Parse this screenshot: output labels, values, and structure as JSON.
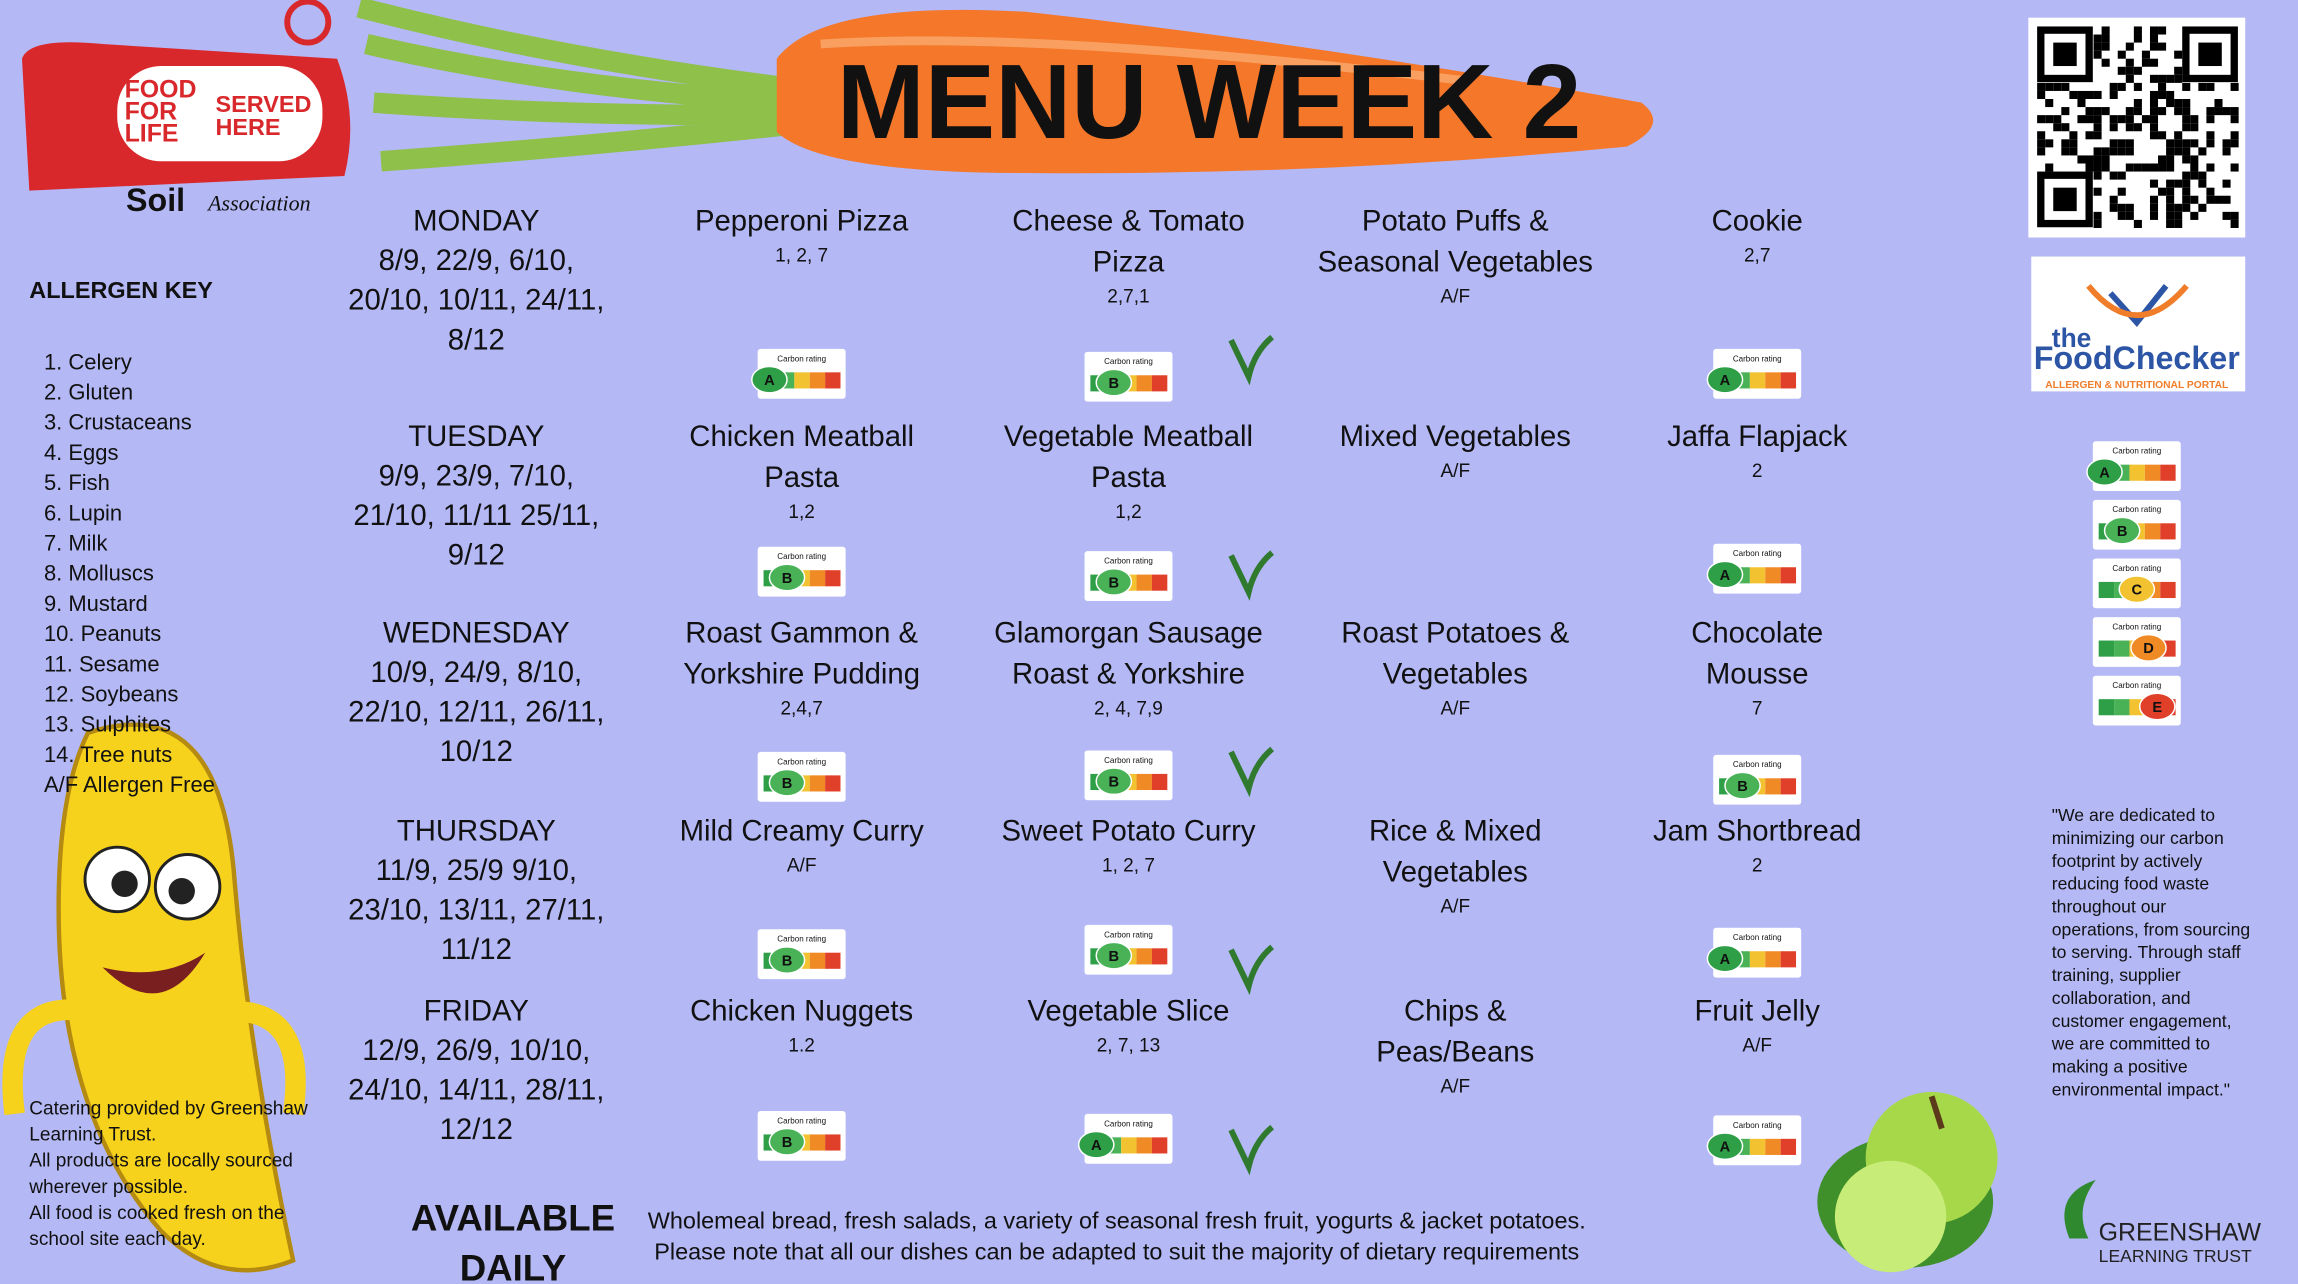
{
  "header": {
    "title": "MENU WEEK 2"
  },
  "logos": {
    "food_for_life": [
      "FOOD",
      "FOR",
      "LIFE"
    ],
    "served_here": [
      "SERVED",
      "HERE"
    ],
    "soil": "Soil",
    "association": "Association",
    "checker_the": "the",
    "checker": "FoodChecker",
    "checker_sub": "ALLERGEN & NUTRITIONAL PORTAL",
    "trust": [
      "GREENSHAW",
      "LEARNING TRUST"
    ]
  },
  "allergen_key": {
    "title": "ALLERGEN KEY",
    "items": [
      "1. Celery",
      "2. Gluten",
      "3. Crustaceans",
      "4. Eggs",
      "5. Fish",
      "6. Lupin",
      "7. Milk",
      "8. Molluscs",
      "9. Mustard",
      "10. Peanuts",
      "11. Sesame",
      "12. Soybeans",
      "13. Sulphites",
      "14. Tree nuts",
      "A/F Allergen Free"
    ]
  },
  "carbon_label": "Carbon rating",
  "days": [
    {
      "name": "MONDAY",
      "dates": [
        "8/9, 22/9, 6/10,",
        "20/10, 10/11, 24/11,",
        "8/12"
      ],
      "dishes": [
        {
          "name": [
            "Pepperoni Pizza"
          ],
          "allergens": "1, 2, 7",
          "rating": "A"
        },
        {
          "name": [
            "Cheese & Tomato",
            "Pizza"
          ],
          "allergens": "2,7,1",
          "rating": "B",
          "vegetarian": true
        },
        {
          "name": [
            "Potato Puffs &",
            "Seasonal Vegetables"
          ],
          "allergens": "A/F"
        },
        {
          "name": [
            "Cookie"
          ],
          "allergens": "2,7",
          "rating": "A"
        }
      ]
    },
    {
      "name": "TUESDAY",
      "dates": [
        "9/9, 23/9, 7/10,",
        "21/10, 11/11 25/11,",
        "9/12"
      ],
      "dishes": [
        {
          "name": [
            "Chicken Meatball",
            "Pasta"
          ],
          "allergens": "1,2",
          "rating": "B"
        },
        {
          "name": [
            "Vegetable Meatball",
            "Pasta"
          ],
          "allergens": "1,2",
          "rating": "B",
          "vegetarian": true
        },
        {
          "name": [
            "Mixed Vegetables"
          ],
          "allergens": "A/F"
        },
        {
          "name": [
            "Jaffa Flapjack"
          ],
          "allergens": "2",
          "rating": "A"
        }
      ]
    },
    {
      "name": "WEDNESDAY",
      "dates": [
        "10/9, 24/9, 8/10,",
        "22/10, 12/11, 26/11,",
        "10/12"
      ],
      "dishes": [
        {
          "name": [
            "Roast Gammon &",
            "Yorkshire Pudding"
          ],
          "allergens": "2,4,7",
          "rating": "B"
        },
        {
          "name": [
            "Glamorgan Sausage",
            "Roast & Yorkshire"
          ],
          "allergens": "2, 4, 7,9",
          "rating": "B",
          "vegetarian": true
        },
        {
          "name": [
            "Roast Potatoes &",
            "Vegetables"
          ],
          "allergens": "A/F"
        },
        {
          "name": [
            "Chocolate",
            "Mousse"
          ],
          "allergens": "7",
          "rating": "B"
        }
      ]
    },
    {
      "name": "THURSDAY",
      "dates": [
        "11/9, 25/9 9/10,",
        "23/10, 13/11, 27/11,",
        "11/12"
      ],
      "dishes": [
        {
          "name": [
            "Mild Creamy Curry"
          ],
          "allergens": "A/F",
          "rating": "B"
        },
        {
          "name": [
            "Sweet Potato Curry"
          ],
          "allergens": "1, 2, 7",
          "rating": "B",
          "vegetarian": true
        },
        {
          "name": [
            "Rice & Mixed",
            "Vegetables"
          ],
          "allergens": "A/F"
        },
        {
          "name": [
            "Jam Shortbread"
          ],
          "allergens": "2",
          "rating": "A"
        }
      ]
    },
    {
      "name": "FRIDAY",
      "dates": [
        "12/9, 26/9, 10/10,",
        "24/10, 14/11, 28/11,",
        "12/12"
      ],
      "dishes": [
        {
          "name": [
            "Chicken Nuggets"
          ],
          "allergens": "1.2",
          "rating": "B"
        },
        {
          "name": [
            "Vegetable Slice"
          ],
          "allergens": "2, 7, 13",
          "rating": "A",
          "vegetarian": true
        },
        {
          "name": [
            "Chips &",
            "Peas/Beans"
          ],
          "allergens": "A/F"
        },
        {
          "name": [
            "Fruit Jelly"
          ],
          "allergens": "A/F",
          "rating": "A"
        }
      ]
    }
  ],
  "rating_scale": [
    "A",
    "B",
    "C",
    "D",
    "E"
  ],
  "quote": [
    "\"We are dedicated to",
    "minimizing our carbon",
    "footprint by actively",
    "reducing food waste",
    "throughout our",
    "operations, from sourcing",
    "to serving. Through staff",
    "training, supplier",
    "collaboration, and",
    "customer engagement,",
    "we are committed to",
    "making a positive",
    "environmental impact.\""
  ],
  "catering": [
    "Catering provided by Greenshaw",
    "Learning Trust.",
    "All products are locally sourced",
    "wherever possible.",
    "All food is cooked fresh on the",
    "school site each day."
  ],
  "available": {
    "title": [
      "AVAILABLE",
      "DAILY"
    ],
    "text": [
      "Wholemeal bread, fresh salads, a variety of seasonal fresh fruit, yogurts & jacket potatoes.",
      "Please note that all our dishes can be adapted to suit the majority of dietary requirements"
    ]
  }
}
